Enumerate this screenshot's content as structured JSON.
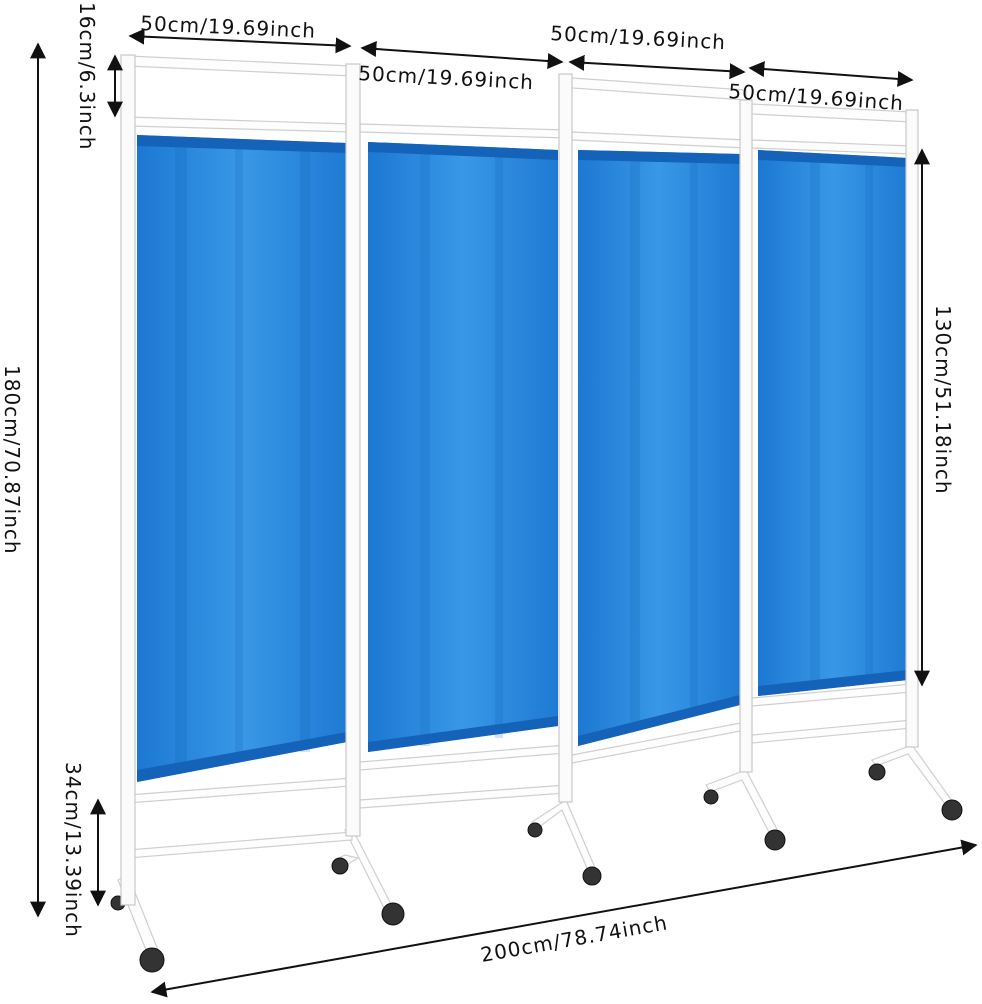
{
  "dimensions": {
    "panel_widths": [
      "50cm/19.69inch",
      "50cm/19.69inch",
      "50cm/19.69inch",
      "50cm/19.69inch"
    ],
    "top_gap": "16cm/6.3inch",
    "total_height": "180cm/70.87inch",
    "curtain_height": "130cm/51.18inch",
    "bottom_gap": "34cm/13.39inch",
    "total_width": "200cm/78.74inch"
  }
}
